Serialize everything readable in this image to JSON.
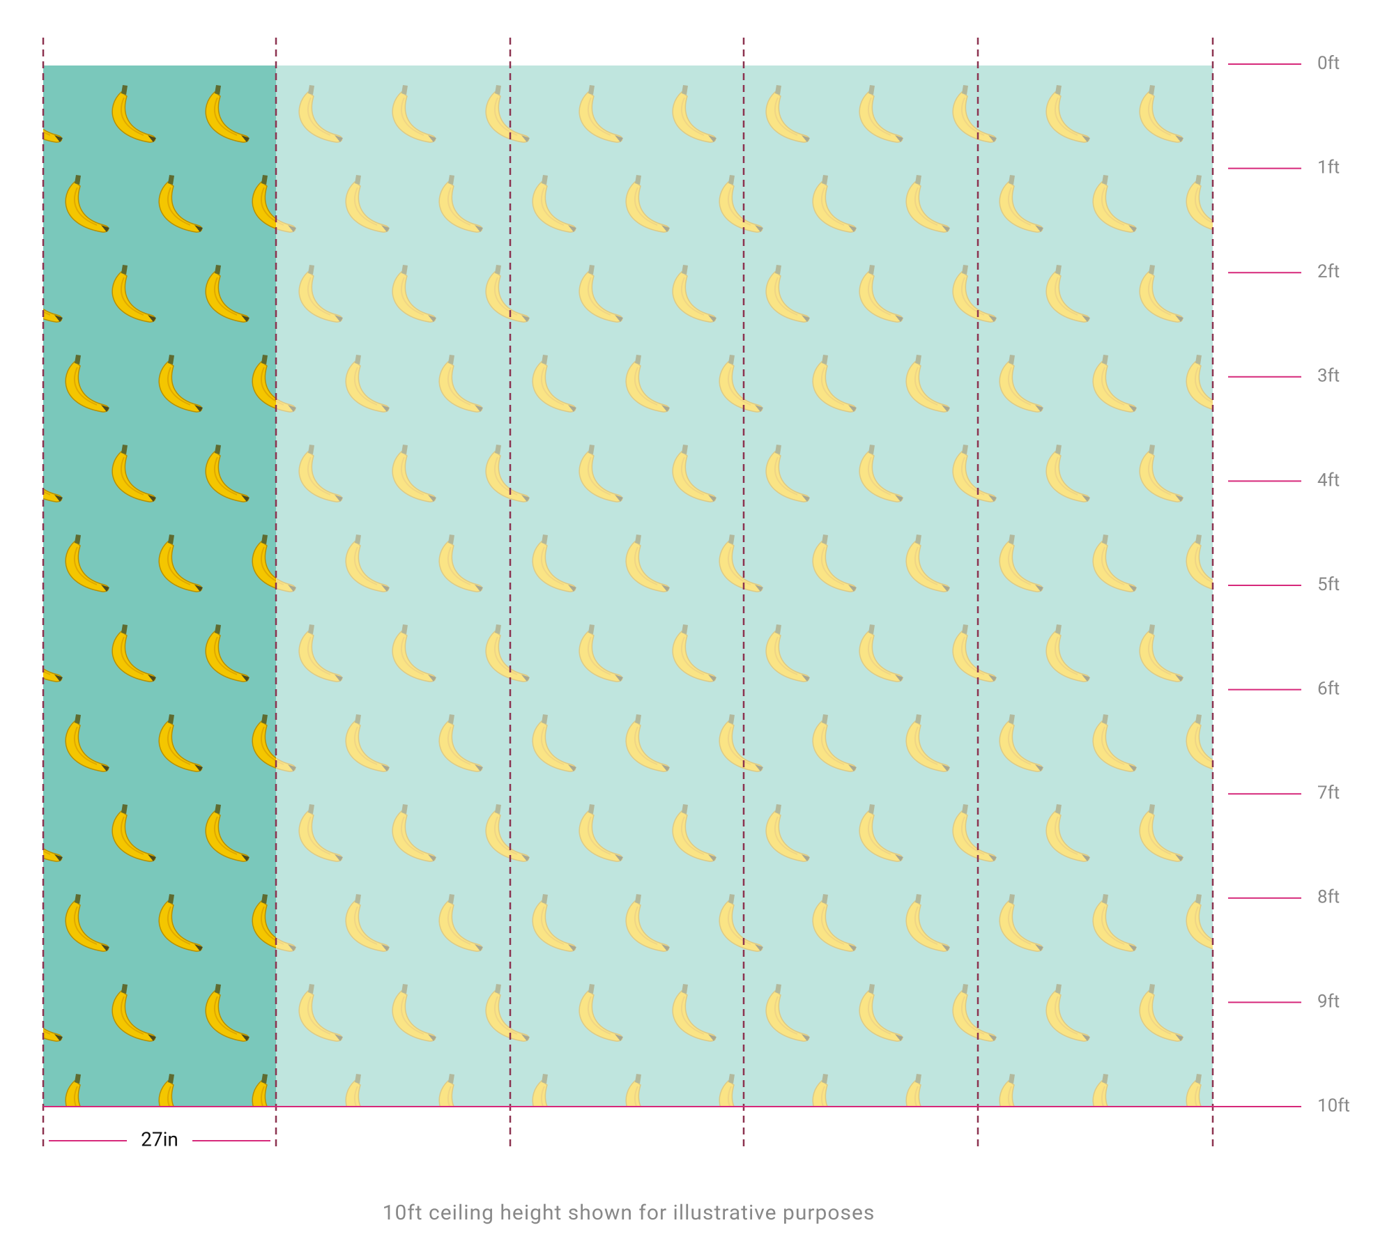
{
  "height_marks": [
    "0ft",
    "1ft",
    "2ft",
    "3ft",
    "4ft",
    "5ft",
    "6ft",
    "7ft",
    "8ft",
    "9ft",
    "10ft"
  ],
  "panel_width": "27in",
  "caption": "10ft ceiling height shown for illustrative purposes"
}
